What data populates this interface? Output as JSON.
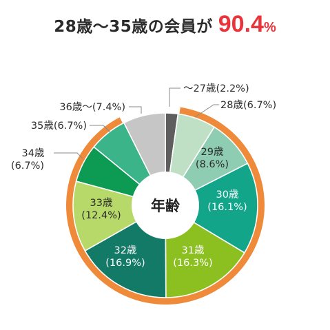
{
  "headline": {
    "text": "28歳～35歳の会員が",
    "value": "90.4",
    "unit": "%"
  },
  "chart_data": {
    "type": "pie",
    "center_label": "年齢",
    "highlight": {
      "label": "28歳～35歳",
      "value": 90.4,
      "color": "#ee8a3a"
    },
    "slices": [
      {
        "label": "～27歳",
        "percent_text": "(2.2%)",
        "value": 2.2,
        "color": "#5e5e5e",
        "highlighted": false
      },
      {
        "label": "28歳",
        "percent_text": "(6.7%)",
        "value": 6.7,
        "color": "#bfe0c4",
        "highlighted": true
      },
      {
        "label": "29歳",
        "percent_text": "(8.6%)",
        "value": 8.6,
        "color": "#8fcdb3",
        "highlighted": true
      },
      {
        "label": "30歳",
        "percent_text": "(16.1%)",
        "value": 16.1,
        "color": "#12a58a",
        "highlighted": true
      },
      {
        "label": "31歳",
        "percent_text": "(16.3%)",
        "value": 16.3,
        "color": "#8cc021",
        "highlighted": true
      },
      {
        "label": "32歳",
        "percent_text": "(16.9%)",
        "value": 16.9,
        "color": "#137a68",
        "highlighted": true
      },
      {
        "label": "33歳",
        "percent_text": "(12.4%)",
        "value": 12.4,
        "color": "#b7d96a",
        "highlighted": true
      },
      {
        "label": "34歳",
        "percent_text": "(6.7%)",
        "value": 6.7,
        "color": "#0d9a53",
        "highlighted": true
      },
      {
        "label": "35歳",
        "percent_text": "(6.7%)",
        "value": 6.7,
        "color": "#3cb48a",
        "highlighted": true
      },
      {
        "label": "36歳～",
        "percent_text": "(7.4%)",
        "value": 7.4,
        "color": "#c6c6c6",
        "highlighted": false
      }
    ]
  }
}
